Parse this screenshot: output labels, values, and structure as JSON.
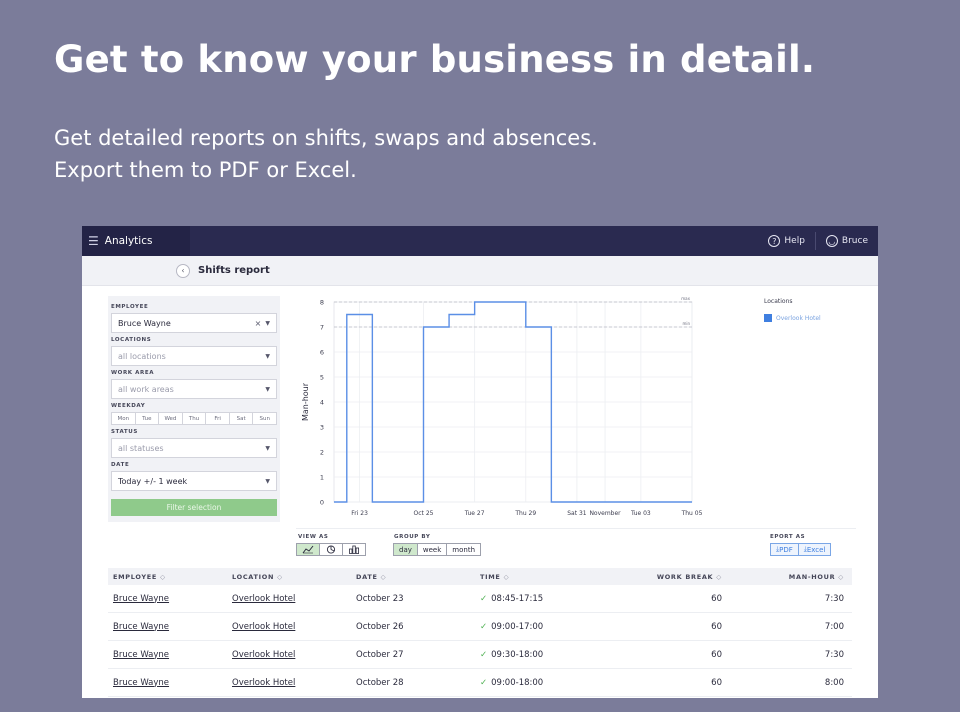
{
  "hero": {
    "title": "Get to know your business in detail.",
    "subtitle_line1": "Get detailed reports on shifts, swaps and absences.",
    "subtitle_line2": "Export them to PDF or Excel."
  },
  "topbar": {
    "app_title": "Analytics",
    "help_label": "Help",
    "user_label": "Bruce"
  },
  "subheader": {
    "title": "Shifts report"
  },
  "filters": {
    "employee_label": "EMPLOYEE",
    "employee_value": "Bruce Wayne",
    "locations_label": "LOCATIONS",
    "locations_placeholder": "all locations",
    "work_area_label": "WORK AREA",
    "work_area_placeholder": "all work areas",
    "weekday_label": "WEEKDAY",
    "weekdays": [
      "Mon",
      "Tue",
      "Wed",
      "Thu",
      "Fri",
      "Sat",
      "Sun"
    ],
    "status_label": "STATUS",
    "status_placeholder": "all statuses",
    "date_label": "DATE",
    "date_value": "Today +/- 1 week",
    "filter_button": "Filter selection"
  },
  "chart_data": {
    "type": "line",
    "step": true,
    "ylabel": "Man-hour",
    "ylim": [
      0,
      8
    ],
    "yticks": [
      0,
      1,
      2,
      3,
      4,
      5,
      6,
      7,
      8
    ],
    "xlim": [
      0,
      14
    ],
    "x_tick_labels": [
      {
        "x": 1,
        "label": "Fri 23"
      },
      {
        "x": 3.5,
        "label": "Oct 25"
      },
      {
        "x": 5.5,
        "label": "Tue 27"
      },
      {
        "x": 7.5,
        "label": "Thu 29"
      },
      {
        "x": 9.5,
        "label": "Sat 31"
      },
      {
        "x": 10.6,
        "label": "November"
      },
      {
        "x": 12,
        "label": "Tue 03"
      },
      {
        "x": 14,
        "label": "Thu 05"
      }
    ],
    "reference_lines": [
      {
        "y": 8,
        "label": "max"
      },
      {
        "y": 7,
        "label": "min"
      }
    ],
    "series": [
      {
        "name": "Overlook Hotel",
        "color": "#5b8fe6",
        "points": [
          [
            0,
            0
          ],
          [
            0.5,
            0
          ],
          [
            0.5,
            7.5
          ],
          [
            1.5,
            7.5
          ],
          [
            1.5,
            0
          ],
          [
            3.5,
            0
          ],
          [
            3.5,
            7
          ],
          [
            4.5,
            7
          ],
          [
            4.5,
            7.5
          ],
          [
            5.5,
            7.5
          ],
          [
            5.5,
            8
          ],
          [
            7.5,
            8
          ],
          [
            7.5,
            7
          ],
          [
            8.5,
            7
          ],
          [
            8.5,
            0
          ],
          [
            14,
            0
          ]
        ]
      }
    ],
    "legend_title": "Locations",
    "legend_position": "right"
  },
  "controls": {
    "view_as_label": "VIEW AS",
    "view_as_icons": [
      "line-chart-icon",
      "pie-chart-icon",
      "bar-chart-icon"
    ],
    "group_by_label": "GROUP BY",
    "group_by": [
      "day",
      "week",
      "month"
    ],
    "group_by_active": "day",
    "export_label": "EPORT AS",
    "export_pdf": "PDF",
    "export_excel": "Excel"
  },
  "table": {
    "headers": [
      "EMPLOYEE",
      "LOCATION",
      "DATE",
      "TIME",
      "WORK BREAK",
      "MAN-HOUR"
    ],
    "rows": [
      [
        "Bruce Wayne",
        "Overlook Hotel",
        "October 23",
        "08:45-17:15",
        "60",
        "7:30"
      ],
      [
        "Bruce Wayne",
        "Overlook Hotel",
        "October 26",
        "09:00-17:00",
        "60",
        "7:00"
      ],
      [
        "Bruce Wayne",
        "Overlook Hotel",
        "October 27",
        "09:30-18:00",
        "60",
        "7:30"
      ],
      [
        "Bruce Wayne",
        "Overlook Hotel",
        "October 28",
        "09:00-18:00",
        "60",
        "8:00"
      ]
    ]
  }
}
